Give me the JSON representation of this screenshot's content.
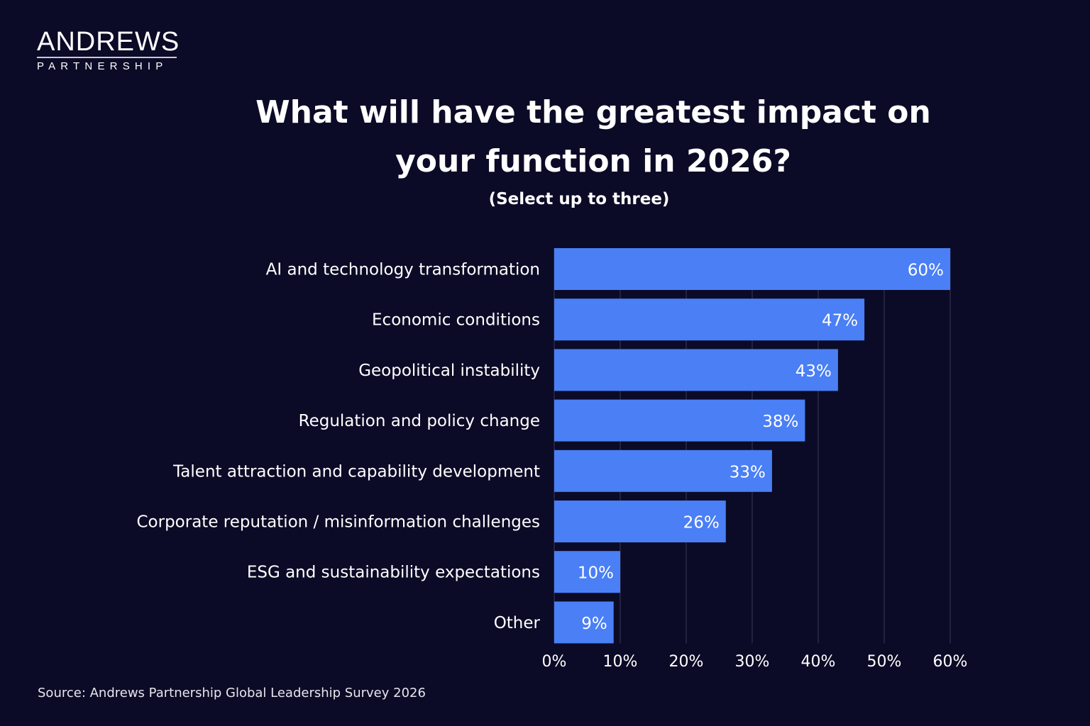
{
  "logo": {
    "main": "ANDREWS",
    "sub": "PARTNERSHIP"
  },
  "chart_data": {
    "type": "bar",
    "orientation": "horizontal",
    "title": "What will have the greatest impact on your function in 2026?",
    "subtitle": "(Select up to three)",
    "categories": [
      "AI and technology transformation",
      "Economic conditions",
      "Geopolitical instability",
      "Regulation and policy change",
      "Talent attraction and capability development",
      "Corporate reputation / misinformation challenges",
      "ESG and sustainability expectations",
      "Other"
    ],
    "values": [
      60,
      47,
      43,
      38,
      33,
      26,
      10,
      9
    ],
    "data_labels": [
      "60%",
      "47%",
      "43%",
      "38%",
      "33%",
      "26%",
      "10%",
      "9%"
    ],
    "xlim": [
      0,
      60
    ],
    "x_ticks": [
      "0%",
      "10%",
      "20%",
      "30%",
      "40%",
      "50%",
      "60%"
    ],
    "grid": "vertical",
    "bar_color": "#4a7ff5",
    "background": "#0b0b27"
  },
  "source": "Source: Andrews Partnership Global Leadership Survey 2026"
}
